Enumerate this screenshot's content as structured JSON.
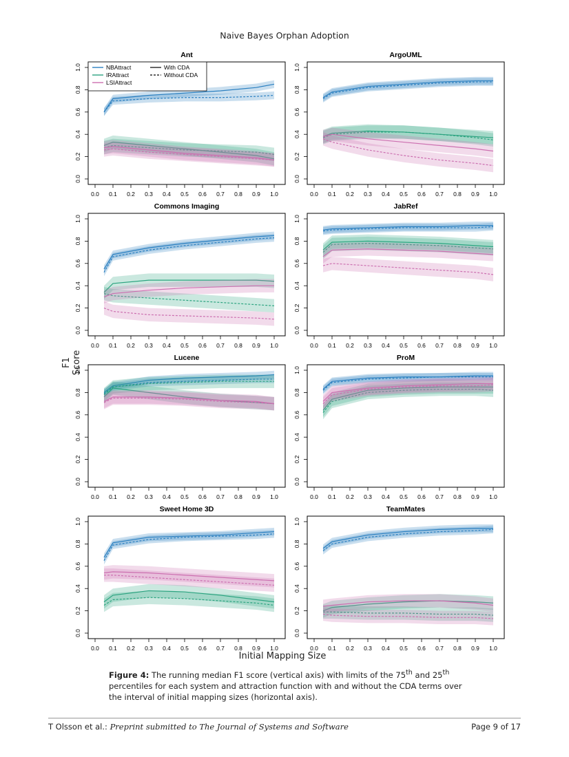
{
  "header": "Naive Bayes Orphan Adoption",
  "axes": {
    "ylabel": "F1 Score",
    "xlabel": "Initial Mapping Size"
  },
  "legend": {
    "functions": [
      "NBAttract",
      "IRAttract",
      "LSIAttract"
    ],
    "styles": [
      "With CDA",
      "Without CDA"
    ]
  },
  "colors": {
    "NBAttract": "#2a7fc0",
    "IRAttract": "#2aa37f",
    "LSIAttract": "#cc6fb0"
  },
  "caption": {
    "label": "Figure 4:",
    "text_1": " The running median F1 score (vertical axis) with limits of the 75",
    "sup_1": "th",
    "text_2": " and 25",
    "sup_2": "th",
    "text_3": " percentiles for each system and attraction function with and without the CDA terms over the interval of initial mapping sizes (horizontal axis)."
  },
  "footer": {
    "left_author": "T Olsson et al.: ",
    "left_venue": "Preprint submitted to The Journal of Systems and Software",
    "right": "Page 9 of 17"
  },
  "chart_data": [
    {
      "type": "line",
      "title": "Ant",
      "xlim": [
        0,
        1
      ],
      "ylim": [
        0,
        1
      ],
      "x": [
        0.05,
        0.1,
        0.3,
        0.5,
        0.7,
        0.9,
        1.0
      ],
      "series": [
        {
          "name": "NBAttract",
          "cda": "With CDA",
          "values": [
            0.6,
            0.72,
            0.75,
            0.77,
            0.79,
            0.82,
            0.85
          ]
        },
        {
          "name": "NBAttract",
          "cda": "Without CDA",
          "values": [
            0.6,
            0.7,
            0.72,
            0.73,
            0.73,
            0.74,
            0.75
          ]
        },
        {
          "name": "IRAttract",
          "cda": "With CDA",
          "values": [
            0.3,
            0.33,
            0.3,
            0.27,
            0.24,
            0.21,
            0.18
          ]
        },
        {
          "name": "IRAttract",
          "cda": "Without CDA",
          "values": [
            0.28,
            0.3,
            0.28,
            0.26,
            0.25,
            0.24,
            0.22
          ]
        },
        {
          "name": "LSIAttract",
          "cda": "With CDA",
          "values": [
            0.28,
            0.29,
            0.26,
            0.23,
            0.21,
            0.19,
            0.17
          ]
        },
        {
          "name": "LSIAttract",
          "cda": "Without CDA",
          "values": [
            0.26,
            0.27,
            0.24,
            0.22,
            0.2,
            0.18,
            0.17
          ]
        }
      ]
    },
    {
      "type": "line",
      "title": "ArgoUML",
      "xlim": [
        0,
        1
      ],
      "ylim": [
        0,
        1
      ],
      "x": [
        0.05,
        0.1,
        0.3,
        0.5,
        0.7,
        0.9,
        1.0
      ],
      "series": [
        {
          "name": "NBAttract",
          "cda": "With CDA",
          "values": [
            0.73,
            0.78,
            0.83,
            0.85,
            0.87,
            0.88,
            0.88
          ]
        },
        {
          "name": "NBAttract",
          "cda": "Without CDA",
          "values": [
            0.72,
            0.77,
            0.82,
            0.84,
            0.86,
            0.87,
            0.87
          ]
        },
        {
          "name": "IRAttract",
          "cda": "With CDA",
          "values": [
            0.38,
            0.41,
            0.43,
            0.42,
            0.4,
            0.38,
            0.37
          ]
        },
        {
          "name": "IRAttract",
          "cda": "Without CDA",
          "values": [
            0.37,
            0.4,
            0.42,
            0.42,
            0.4,
            0.37,
            0.35
          ]
        },
        {
          "name": "LSIAttract",
          "cda": "With CDA",
          "values": [
            0.38,
            0.4,
            0.36,
            0.33,
            0.3,
            0.27,
            0.25
          ]
        },
        {
          "name": "LSIAttract",
          "cda": "Without CDA",
          "values": [
            0.36,
            0.33,
            0.26,
            0.21,
            0.17,
            0.14,
            0.12
          ]
        }
      ]
    },
    {
      "type": "line",
      "title": "Commons Imaging",
      "xlim": [
        0,
        1
      ],
      "ylim": [
        0,
        1
      ],
      "x": [
        0.05,
        0.1,
        0.3,
        0.5,
        0.7,
        0.9,
        1.0
      ],
      "series": [
        {
          "name": "NBAttract",
          "cda": "With CDA",
          "values": [
            0.55,
            0.68,
            0.74,
            0.78,
            0.81,
            0.84,
            0.85
          ]
        },
        {
          "name": "NBAttract",
          "cda": "Without CDA",
          "values": [
            0.52,
            0.66,
            0.72,
            0.76,
            0.79,
            0.82,
            0.83
          ]
        },
        {
          "name": "IRAttract",
          "cda": "With CDA",
          "values": [
            0.34,
            0.42,
            0.45,
            0.45,
            0.45,
            0.45,
            0.44
          ]
        },
        {
          "name": "IRAttract",
          "cda": "Without CDA",
          "values": [
            0.33,
            0.31,
            0.29,
            0.27,
            0.25,
            0.23,
            0.22
          ]
        },
        {
          "name": "LSIAttract",
          "cda": "With CDA",
          "values": [
            0.3,
            0.33,
            0.36,
            0.38,
            0.39,
            0.4,
            0.4
          ]
        },
        {
          "name": "LSIAttract",
          "cda": "Without CDA",
          "values": [
            0.2,
            0.17,
            0.14,
            0.13,
            0.12,
            0.11,
            0.1
          ]
        }
      ]
    },
    {
      "type": "line",
      "title": "JabRef",
      "xlim": [
        0,
        1
      ],
      "ylim": [
        0,
        1
      ],
      "x": [
        0.05,
        0.1,
        0.3,
        0.5,
        0.7,
        0.9,
        1.0
      ],
      "series": [
        {
          "name": "NBAttract",
          "cda": "With CDA",
          "values": [
            0.9,
            0.91,
            0.92,
            0.93,
            0.93,
            0.94,
            0.94
          ]
        },
        {
          "name": "NBAttract",
          "cda": "Without CDA",
          "values": [
            0.89,
            0.9,
            0.91,
            0.92,
            0.92,
            0.92,
            0.93
          ]
        },
        {
          "name": "IRAttract",
          "cda": "With CDA",
          "values": [
            0.72,
            0.79,
            0.8,
            0.79,
            0.78,
            0.76,
            0.75
          ]
        },
        {
          "name": "IRAttract",
          "cda": "Without CDA",
          "values": [
            0.7,
            0.77,
            0.78,
            0.77,
            0.76,
            0.74,
            0.73
          ]
        },
        {
          "name": "LSIAttract",
          "cda": "With CDA",
          "values": [
            0.66,
            0.72,
            0.73,
            0.72,
            0.71,
            0.69,
            0.68
          ]
        },
        {
          "name": "LSIAttract",
          "cda": "Without CDA",
          "values": [
            0.58,
            0.6,
            0.58,
            0.56,
            0.54,
            0.52,
            0.5
          ]
        }
      ]
    },
    {
      "type": "line",
      "title": "Lucene",
      "xlim": [
        0,
        1
      ],
      "ylim": [
        0,
        1
      ],
      "x": [
        0.05,
        0.1,
        0.3,
        0.5,
        0.7,
        0.9,
        1.0
      ],
      "series": [
        {
          "name": "NBAttract",
          "cda": "With CDA",
          "values": [
            0.8,
            0.86,
            0.91,
            0.93,
            0.94,
            0.95,
            0.96
          ]
        },
        {
          "name": "NBAttract",
          "cda": "Without CDA",
          "values": [
            0.79,
            0.85,
            0.89,
            0.9,
            0.91,
            0.92,
            0.92
          ]
        },
        {
          "name": "IRAttract",
          "cda": "With CDA",
          "values": [
            0.76,
            0.84,
            0.8,
            0.76,
            0.73,
            0.71,
            0.7
          ]
        },
        {
          "name": "IRAttract",
          "cda": "Without CDA",
          "values": [
            0.78,
            0.85,
            0.88,
            0.89,
            0.9,
            0.9,
            0.9
          ]
        },
        {
          "name": "LSIAttract",
          "cda": "With CDA",
          "values": [
            0.72,
            0.76,
            0.76,
            0.75,
            0.73,
            0.72,
            0.7
          ]
        },
        {
          "name": "LSIAttract",
          "cda": "Without CDA",
          "values": [
            0.71,
            0.75,
            0.75,
            0.74,
            0.72,
            0.71,
            0.7
          ]
        }
      ]
    },
    {
      "type": "line",
      "title": "ProM",
      "xlim": [
        0,
        1
      ],
      "ylim": [
        0,
        1
      ],
      "x": [
        0.05,
        0.1,
        0.3,
        0.5,
        0.7,
        0.9,
        1.0
      ],
      "series": [
        {
          "name": "NBAttract",
          "cda": "With CDA",
          "values": [
            0.83,
            0.9,
            0.93,
            0.94,
            0.94,
            0.95,
            0.95
          ]
        },
        {
          "name": "NBAttract",
          "cda": "Without CDA",
          "values": [
            0.82,
            0.89,
            0.92,
            0.93,
            0.94,
            0.94,
            0.94
          ]
        },
        {
          "name": "IRAttract",
          "cda": "With CDA",
          "values": [
            0.64,
            0.74,
            0.82,
            0.84,
            0.85,
            0.85,
            0.85
          ]
        },
        {
          "name": "IRAttract",
          "cda": "Without CDA",
          "values": [
            0.62,
            0.72,
            0.8,
            0.82,
            0.83,
            0.83,
            0.82
          ]
        },
        {
          "name": "LSIAttract",
          "cda": "With CDA",
          "values": [
            0.72,
            0.8,
            0.84,
            0.86,
            0.87,
            0.88,
            0.88
          ]
        },
        {
          "name": "LSIAttract",
          "cda": "Without CDA",
          "values": [
            0.7,
            0.78,
            0.83,
            0.85,
            0.86,
            0.86,
            0.87
          ]
        }
      ]
    },
    {
      "type": "line",
      "title": "Sweet Home 3D",
      "xlim": [
        0,
        1
      ],
      "ylim": [
        0,
        1
      ],
      "x": [
        0.05,
        0.1,
        0.3,
        0.5,
        0.7,
        0.9,
        1.0
      ],
      "series": [
        {
          "name": "NBAttract",
          "cda": "With CDA",
          "values": [
            0.68,
            0.81,
            0.86,
            0.87,
            0.88,
            0.9,
            0.91
          ]
        },
        {
          "name": "NBAttract",
          "cda": "Without CDA",
          "values": [
            0.65,
            0.79,
            0.84,
            0.86,
            0.87,
            0.88,
            0.89
          ]
        },
        {
          "name": "IRAttract",
          "cda": "With CDA",
          "values": [
            0.28,
            0.34,
            0.38,
            0.37,
            0.34,
            0.3,
            0.28
          ]
        },
        {
          "name": "IRAttract",
          "cda": "Without CDA",
          "values": [
            0.25,
            0.3,
            0.32,
            0.31,
            0.29,
            0.27,
            0.25
          ]
        },
        {
          "name": "LSIAttract",
          "cda": "With CDA",
          "values": [
            0.54,
            0.55,
            0.54,
            0.52,
            0.5,
            0.48,
            0.47
          ]
        },
        {
          "name": "LSIAttract",
          "cda": "Without CDA",
          "values": [
            0.52,
            0.52,
            0.5,
            0.48,
            0.46,
            0.44,
            0.43
          ]
        }
      ]
    },
    {
      "type": "line",
      "title": "TeamMates",
      "xlim": [
        0,
        1
      ],
      "ylim": [
        0,
        1
      ],
      "x": [
        0.05,
        0.1,
        0.3,
        0.5,
        0.7,
        0.9,
        1.0
      ],
      "series": [
        {
          "name": "NBAttract",
          "cda": "With CDA",
          "values": [
            0.76,
            0.82,
            0.88,
            0.91,
            0.93,
            0.94,
            0.94
          ]
        },
        {
          "name": "NBAttract",
          "cda": "Without CDA",
          "values": [
            0.74,
            0.8,
            0.86,
            0.89,
            0.91,
            0.92,
            0.93
          ]
        },
        {
          "name": "IRAttract",
          "cda": "With CDA",
          "values": [
            0.2,
            0.23,
            0.26,
            0.28,
            0.29,
            0.28,
            0.27
          ]
        },
        {
          "name": "IRAttract",
          "cda": "Without CDA",
          "values": [
            0.19,
            0.19,
            0.18,
            0.18,
            0.17,
            0.17,
            0.16
          ]
        },
        {
          "name": "LSIAttract",
          "cda": "With CDA",
          "values": [
            0.24,
            0.25,
            0.28,
            0.29,
            0.29,
            0.27,
            0.25
          ]
        },
        {
          "name": "LSIAttract",
          "cda": "Without CDA",
          "values": [
            0.17,
            0.16,
            0.15,
            0.15,
            0.14,
            0.14,
            0.13
          ]
        }
      ]
    }
  ]
}
